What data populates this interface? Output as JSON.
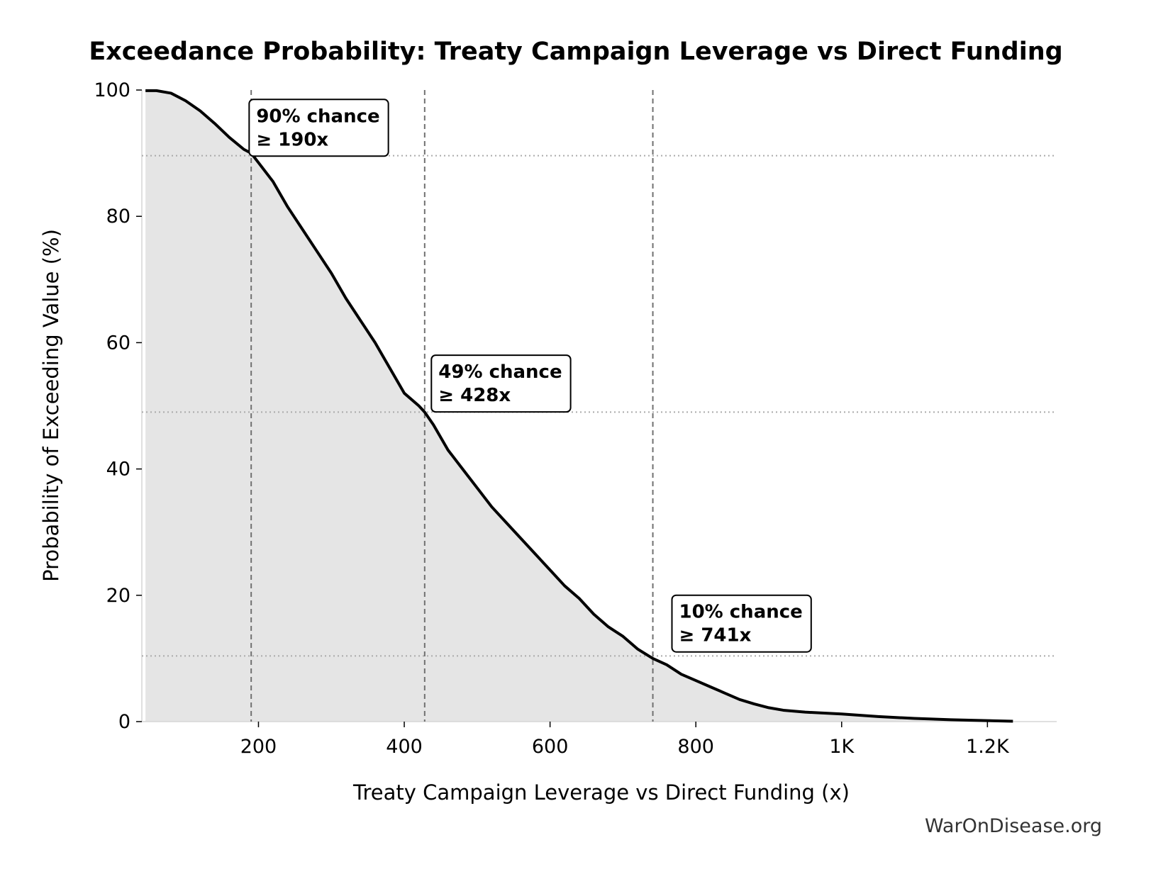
{
  "chart_data": {
    "type": "area",
    "title": "Exceedance Probability: Treaty Campaign Leverage vs Direct Funding",
    "xlabel": "Treaty Campaign Leverage vs Direct Funding (x)",
    "ylabel": "Probability of Exceeding Value (%)",
    "xlim": [
      40,
      1295
    ],
    "ylim": [
      0,
      100
    ],
    "x_ticks": [
      {
        "value": 200,
        "label": "200"
      },
      {
        "value": 400,
        "label": "400"
      },
      {
        "value": 600,
        "label": "600"
      },
      {
        "value": 800,
        "label": "800"
      },
      {
        "value": 1000,
        "label": "1K"
      },
      {
        "value": 1200,
        "label": "1.2K"
      }
    ],
    "y_ticks": [
      {
        "value": 0,
        "label": "0"
      },
      {
        "value": 20,
        "label": "20"
      },
      {
        "value": 40,
        "label": "40"
      },
      {
        "value": 60,
        "label": "60"
      },
      {
        "value": 80,
        "label": "80"
      },
      {
        "value": 100,
        "label": "100"
      }
    ],
    "grid": false,
    "series": [
      {
        "color": "#000000",
        "fill": "#e5e5e5",
        "x": [
          45,
          60,
          80,
          100,
          120,
          140,
          160,
          180,
          190,
          200,
          220,
          240,
          260,
          280,
          300,
          320,
          340,
          360,
          380,
          400,
          420,
          428,
          440,
          460,
          480,
          500,
          520,
          540,
          560,
          580,
          600,
          620,
          640,
          660,
          680,
          700,
          720,
          741,
          760,
          780,
          800,
          820,
          840,
          860,
          880,
          900,
          920,
          950,
          1000,
          1050,
          1100,
          1150,
          1200,
          1235
        ],
        "y": [
          99.9,
          99.9,
          99.5,
          98.3,
          96.7,
          94.7,
          92.5,
          90.6,
          90.0,
          88.5,
          85.5,
          81.5,
          78.0,
          74.5,
          71.0,
          67.0,
          63.5,
          60.0,
          56.0,
          52.0,
          50.0,
          49.0,
          47.0,
          43.0,
          40.0,
          37.0,
          34.0,
          31.5,
          29.0,
          26.5,
          24.0,
          21.5,
          19.5,
          17.0,
          15.0,
          13.5,
          11.5,
          10.0,
          9.0,
          7.5,
          6.5,
          5.5,
          4.5,
          3.5,
          2.8,
          2.2,
          1.8,
          1.5,
          1.2,
          0.8,
          0.5,
          0.3,
          0.15,
          0.05
        ]
      }
    ],
    "markers": [
      {
        "x": 190,
        "y": 89.6,
        "text_line1": "90% chance",
        "text_line2": "≥ 190x",
        "box_x": 195,
        "box_y": 97.5
      },
      {
        "x": 428,
        "y": 49.0,
        "text_line1": "49% chance",
        "text_line2": "≥ 428x",
        "box_x": 445,
        "box_y": 57.0
      },
      {
        "x": 741,
        "y": 10.4,
        "text_line1": "10% chance",
        "text_line2": "≥ 741x",
        "box_x": 775,
        "box_y": 19.0
      }
    ]
  },
  "watermark": "WarOnDisease.org"
}
